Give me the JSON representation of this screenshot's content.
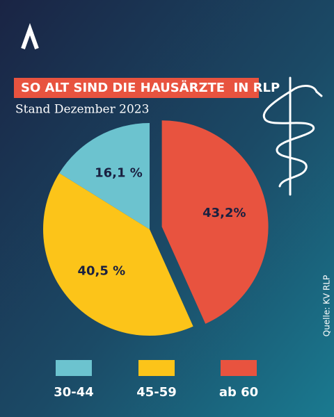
{
  "chart_data": {
    "type": "pie",
    "title": "SO ALT SIND DIE HAUSÄRZTE  IN RLP",
    "subtitle": "Stand Dezember 2023",
    "source": "Quelle: KV RLP",
    "categories": [
      "30-44",
      "45-59",
      "ab 60"
    ],
    "values": [
      16.1,
      40.5,
      43.2
    ],
    "value_labels": [
      "16,1 %",
      "40,5 %",
      "43,2%"
    ],
    "colors": [
      "#6cc3cf",
      "#fcc419",
      "#e8533f"
    ]
  }
}
